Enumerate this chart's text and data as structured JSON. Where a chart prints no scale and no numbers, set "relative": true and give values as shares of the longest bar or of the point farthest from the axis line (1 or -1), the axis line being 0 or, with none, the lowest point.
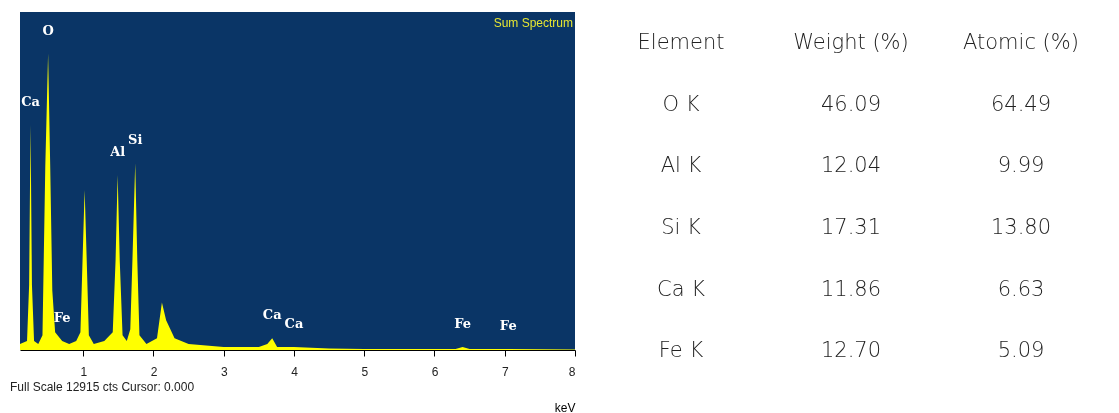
{
  "chart_data": [
    {
      "type": "area",
      "title": "Sum Spectrum",
      "xlabel": "keV",
      "relative": true,
      "grid": false,
      "xlim": [
        0.1,
        8
      ],
      "xticks": [
        1,
        2,
        3,
        4,
        5,
        6,
        7,
        8
      ],
      "series": [
        {
          "color": "#ffff00",
          "x": [
            0.1,
            0.2,
            0.23,
            0.25,
            0.27,
            0.3,
            0.36,
            0.42,
            0.46,
            0.5,
            0.53,
            0.56,
            0.6,
            0.7,
            0.8,
            0.9,
            0.96,
            0.99,
            1.02,
            1.05,
            1.08,
            1.15,
            1.3,
            1.42,
            1.46,
            1.49,
            1.52,
            1.56,
            1.62,
            1.67,
            1.7,
            1.74,
            1.77,
            1.8,
            1.9,
            2.05,
            2.12,
            2.18,
            2.3,
            2.5,
            3.0,
            3.5,
            3.62,
            3.69,
            3.76,
            4.0,
            4.5,
            5.0,
            6.3,
            6.4,
            6.5,
            7.05,
            8
          ],
          "values": [
            0.02,
            0.03,
            0.22,
            0.76,
            0.22,
            0.03,
            0.02,
            0.05,
            0.62,
            1,
            0.62,
            0.2,
            0.06,
            0.03,
            0.02,
            0.03,
            0.06,
            0.3,
            0.54,
            0.3,
            0.05,
            0.02,
            0.03,
            0.06,
            0.3,
            0.59,
            0.3,
            0.05,
            0.03,
            0.07,
            0.3,
            0.63,
            0.3,
            0.05,
            0.02,
            0.04,
            0.16,
            0.1,
            0.04,
            0.02,
            0.01,
            0.01,
            0.02,
            0.04,
            0.01,
            0.01,
            0.005,
            0.003,
            0.003,
            0.01,
            0.003,
            0.003,
            0.002
          ]
        }
      ],
      "annotations": [
        {
          "text": "Ca",
          "x": 0.25,
          "y": 0.76
        },
        {
          "text": "O",
          "x": 0.5,
          "y": 1
        },
        {
          "text": "Fe",
          "x": 0.7,
          "y": 0.03
        },
        {
          "text": "Al",
          "x": 1.49,
          "y": 0.59
        },
        {
          "text": "Si",
          "x": 1.74,
          "y": 0.63
        },
        {
          "text": "Ca",
          "x": 3.69,
          "y": 0.04
        },
        {
          "text": "Ca",
          "x": 4.0,
          "y": 0.01
        },
        {
          "text": "Fe",
          "x": 6.4,
          "y": 0.01
        },
        {
          "text": "Fe",
          "x": 7.05,
          "y": 0.003
        },
        "Full Scale 12915 cts Cursor: 0.000"
      ]
    },
    {
      "type": "other",
      "annotations": [
        "Element",
        "Weight (%)",
        "Atomic (%)",
        "O K",
        "46.09",
        "64.49",
        "Al K",
        "12.04",
        "9.99",
        "Si K",
        "17.31",
        "13.80",
        "Ca K",
        "11.86",
        "6.63",
        "Fe K",
        "12.70",
        "5.09"
      ]
    }
  ]
}
